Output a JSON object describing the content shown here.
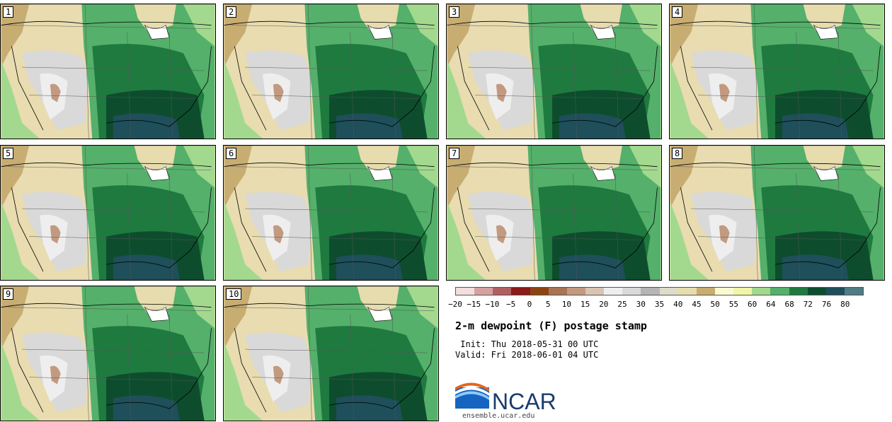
{
  "panels": [
    {
      "label": "1"
    },
    {
      "label": "2"
    },
    {
      "label": "3"
    },
    {
      "label": "4"
    },
    {
      "label": "5"
    },
    {
      "label": "6"
    },
    {
      "label": "7"
    },
    {
      "label": "8"
    },
    {
      "label": "9"
    },
    {
      "label": "10"
    }
  ],
  "colorbar": {
    "colors": [
      "#f2dede",
      "#d4a1a1",
      "#b06060",
      "#8b1a1a",
      "#8b4513",
      "#a87453",
      "#c29a80",
      "#d9c3b2",
      "#eeeeee",
      "#d9d9d9",
      "#b5b5b5",
      "#dcdcc8",
      "#e6dcae",
      "#c8ad72",
      "#fafad2",
      "#f0f5a8",
      "#a3d98e",
      "#54b06a",
      "#1f7a3f",
      "#0d4d2d",
      "#1e4f5a",
      "#4f7d82"
    ],
    "tick_labels": [
      "−20",
      "−15",
      "−10",
      "−5",
      "0",
      "5",
      "10",
      "15",
      "20",
      "25",
      "30",
      "35",
      "40",
      "45",
      "50",
      "55",
      "60",
      "64",
      "68",
      "72",
      "76",
      "80"
    ]
  },
  "title": "2-m dewpoint (F) postage stamp",
  "init_text": " Init: Thu 2018-05-31 00 UTC",
  "valid_text": "Valid: Fri 2018-06-01 04 UTC",
  "logo_text": "NCAR",
  "site_text": "ensemble.ucar.edu"
}
